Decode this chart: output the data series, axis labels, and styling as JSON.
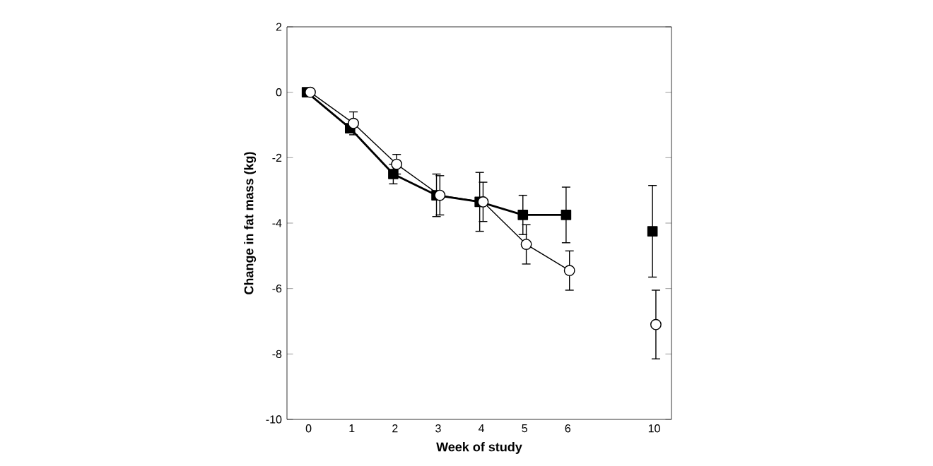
{
  "chart_data": {
    "type": "line",
    "xlabel": "Week of study",
    "ylabel": "Change in fat mass (kg)",
    "categories": [
      "0",
      "1",
      "2",
      "3",
      "4",
      "5",
      "6",
      null,
      "10"
    ],
    "ylim": [
      -10,
      2
    ],
    "yticks": [
      -10,
      -8,
      -6,
      -4,
      -2,
      0,
      2
    ],
    "series": [
      {
        "color": "#000000",
        "marker": "square",
        "line_style": "solid",
        "values": [
          0,
          -1.1,
          -2.5,
          -3.15,
          -3.35,
          -3.75,
          -3.75,
          null,
          -4.25
        ],
        "errors": [
          null,
          null,
          0.3,
          0.65,
          0.9,
          0.6,
          0.85,
          null,
          1.4
        ]
      },
      {
        "color": "#000000",
        "marker": "circle",
        "line_style": "solid",
        "values": [
          0,
          -0.95,
          -2.2,
          -3.15,
          -3.35,
          -4.65,
          -5.45,
          null,
          -7.1
        ],
        "errors": [
          null,
          0.35,
          0.3,
          0.6,
          0.6,
          0.6,
          0.6,
          null,
          1.05
        ]
      }
    ]
  }
}
